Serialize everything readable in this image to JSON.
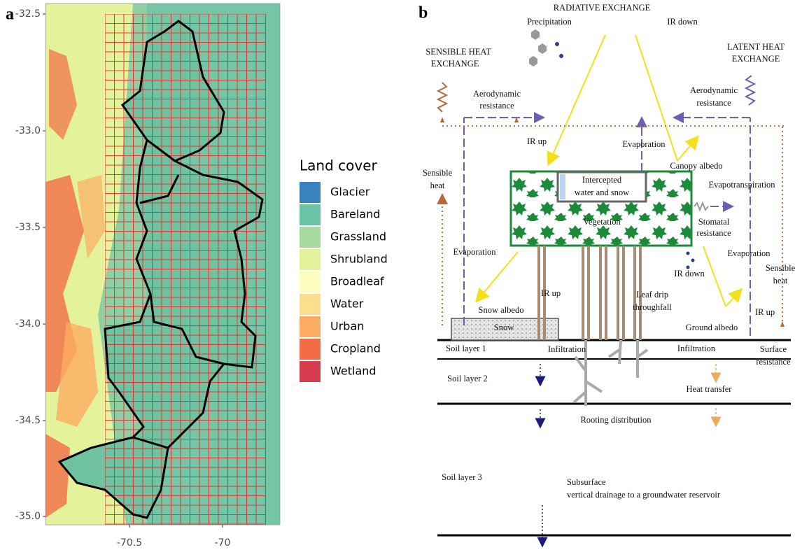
{
  "panel_a": {
    "label": "a",
    "yticks": [
      "-32.5",
      "-33.0",
      "-33.5",
      "-34.0",
      "-34.5",
      "-35.0"
    ],
    "xticks": [
      "-70.5",
      "-70"
    ],
    "legend": {
      "title": "Land cover",
      "items": [
        {
          "name": "Glacier",
          "color": "#3a82bf"
        },
        {
          "name": "Bareland",
          "color": "#69c3a6"
        },
        {
          "name": "Grassland",
          "color": "#a7d9a1"
        },
        {
          "name": "Shrubland",
          "color": "#e4f39b"
        },
        {
          "name": "Broadleaf",
          "color": "#fdfdc0"
        },
        {
          "name": "Water",
          "color": "#fdde8d"
        },
        {
          "name": "Urban",
          "color": "#fcad63"
        },
        {
          "name": "Cropland",
          "color": "#f26c45"
        },
        {
          "name": "Wetland",
          "color": "#d63e50"
        }
      ]
    }
  },
  "panel_b": {
    "label": "b",
    "labels": [
      "RADIATIVE EXCHANGE",
      "Precipitation",
      "IR down",
      "SENSIBLE HEAT",
      "EXCHANGE",
      "LATENT HEAT",
      "EXCHANGE",
      "Aerodynamic",
      "resistance",
      "Aerodynamic",
      "resistance",
      "IR up",
      "Evaporation",
      "Canopy albedo",
      "Sensible",
      "heat",
      "Intercepted",
      "water and snow",
      "Evapotranspiration",
      "Vegetation",
      "Stomatal",
      "resistance",
      "Evaporation",
      "Evaporation",
      "IR down",
      "Sensible",
      "heat",
      "Leaf drip",
      "throughfall",
      "IR up",
      "Snow albedo",
      "IR up",
      "Snow",
      "Ground albedo",
      "Soil layer 1",
      "Infiltration",
      "Infiltration",
      "Surface",
      "resistance",
      "Soil layer 2",
      "Heat transfer",
      "Rooting distribution",
      "Soil layer 3",
      "Subsurface",
      "vertical drainage to a groundwater reservoir"
    ]
  }
}
